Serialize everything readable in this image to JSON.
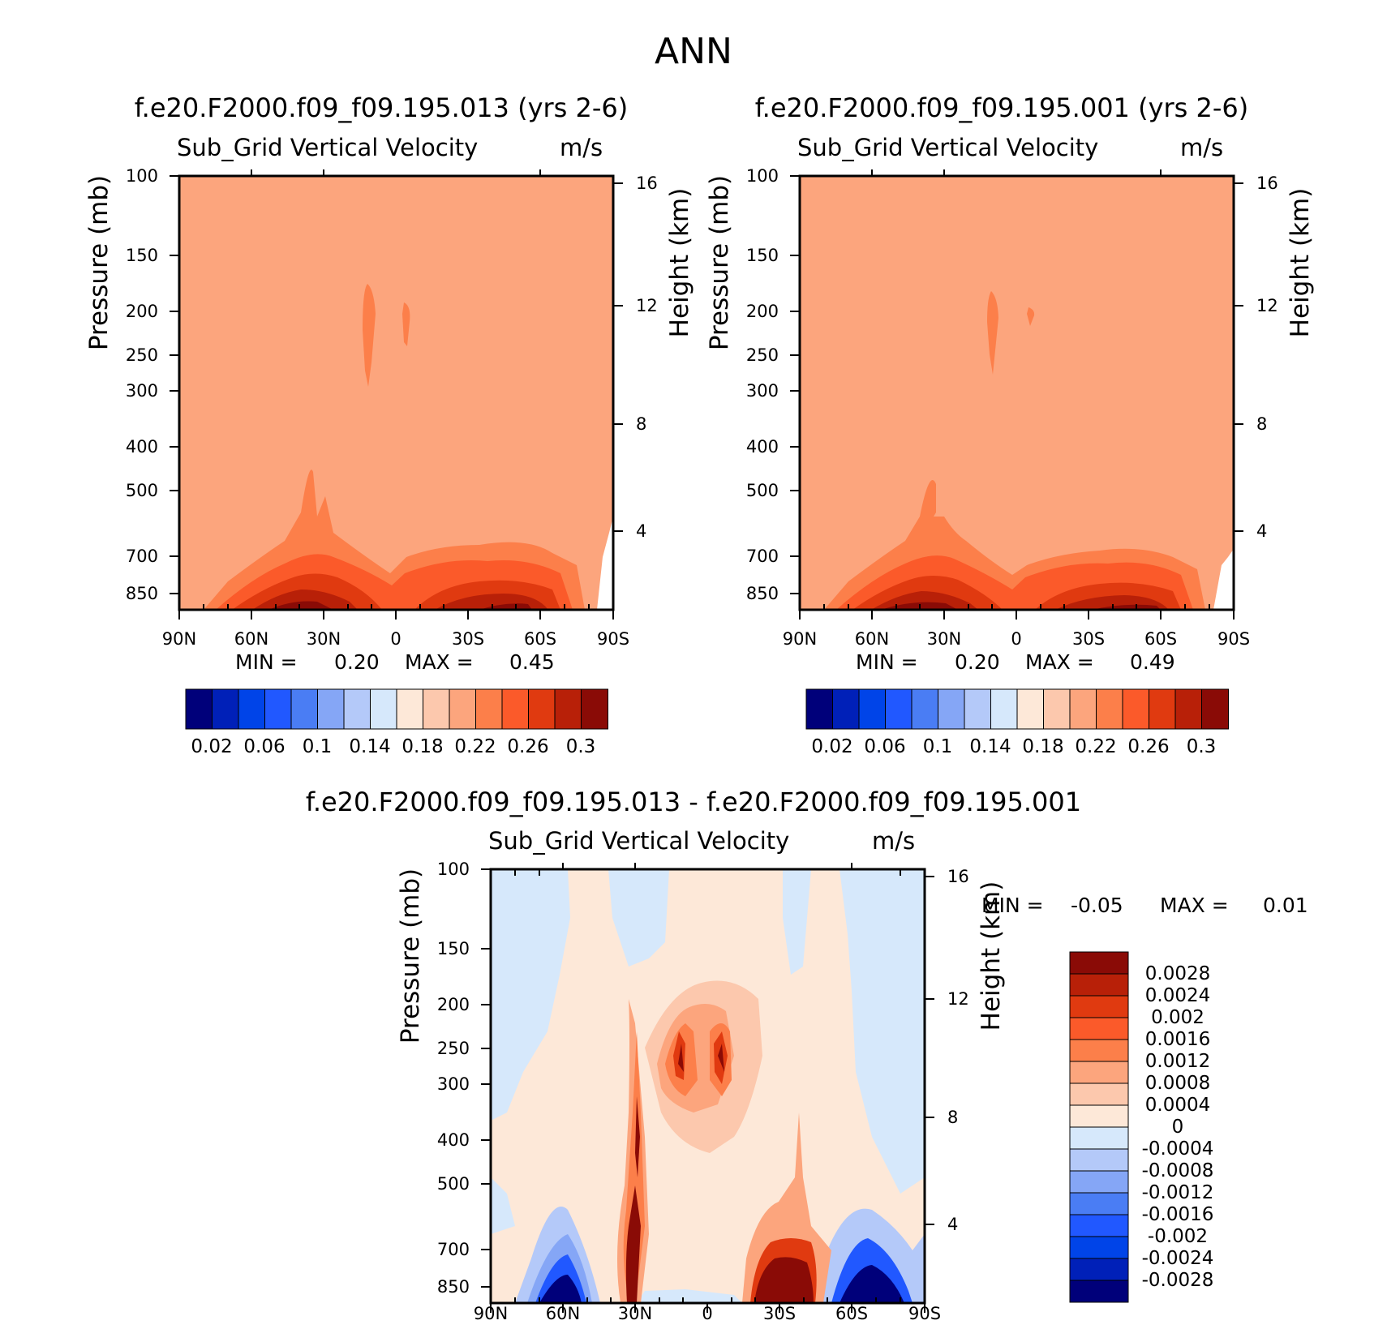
{
  "title": "ANN",
  "colors": {
    "background_top": "#fca57d",
    "diff_background": "#fde8d8",
    "outline": "#000000"
  },
  "panels": {
    "top_left": {
      "title": "f.e20.F2000.f09_f09.195.013 (yrs 2-6)",
      "variable": "Sub_Grid Vertical Velocity",
      "units": "m/s",
      "min_label": "MIN =",
      "min_value": "0.20",
      "max_label": "MAX =",
      "max_value": "0.45"
    },
    "top_right": {
      "title": "f.e20.F2000.f09_f09.195.001 (yrs 2-6)",
      "variable": "Sub_Grid Vertical Velocity",
      "units": "m/s",
      "min_label": "MIN =",
      "min_value": "0.20",
      "max_label": "MAX =",
      "max_value": "0.49"
    },
    "bottom": {
      "title": "f.e20.F2000.f09_f09.195.013 - f.e20.F2000.f09_f09.195.001",
      "variable": "Sub_Grid Vertical Velocity",
      "units": "m/s",
      "min_label": "MIN =",
      "min_value": "-0.05",
      "max_label": "MAX =",
      "max_value": "0.01"
    }
  },
  "axes": {
    "ylabel_left": "Pressure (mb)",
    "ylabel_right": "Height (km)",
    "pressure_ticks": [
      "100",
      "150",
      "200",
      "250",
      "300",
      "400",
      "500",
      "700",
      "850"
    ],
    "height_ticks": [
      "16",
      "12",
      "8",
      "4"
    ],
    "lat_ticks": [
      "90N",
      "60N",
      "30N",
      "0",
      "30S",
      "60S",
      "90S"
    ]
  },
  "chart_data": [
    {
      "type": "heatmap",
      "title": "f.e20.F2000.f09_f09.195.013 (yrs 2-6)",
      "subtitle": "Sub_Grid Vertical Velocity",
      "units": "m/s",
      "xlabel": "",
      "ylabel": "Pressure (mb)",
      "ylabel_right": "Height (km)",
      "x_ticks": [
        "90N",
        "60N",
        "30N",
        "0",
        "30S",
        "60S",
        "90S"
      ],
      "y_ticks": [
        100,
        150,
        200,
        250,
        300,
        400,
        500,
        700,
        850
      ],
      "y_scale": "log",
      "min": 0.2,
      "max": 0.45,
      "colorbar": {
        "levels": [
          0.02,
          0.04,
          0.06,
          0.08,
          0.1,
          0.12,
          0.14,
          0.16,
          0.18,
          0.2,
          0.22,
          0.24,
          0.26,
          0.28,
          0.3
        ],
        "tick_labels": [
          "0.02",
          "0.06",
          "0.1",
          "0.14",
          "0.18",
          "0.22",
          "0.26",
          "0.3"
        ]
      }
    },
    {
      "type": "heatmap",
      "title": "f.e20.F2000.f09_f09.195.001 (yrs 2-6)",
      "subtitle": "Sub_Grid Vertical Velocity",
      "units": "m/s",
      "xlabel": "",
      "ylabel": "Pressure (mb)",
      "ylabel_right": "Height (km)",
      "x_ticks": [
        "90N",
        "60N",
        "30N",
        "0",
        "30S",
        "60S",
        "90S"
      ],
      "y_ticks": [
        100,
        150,
        200,
        250,
        300,
        400,
        500,
        700,
        850
      ],
      "y_scale": "log",
      "min": 0.2,
      "max": 0.49,
      "colorbar": {
        "levels": [
          0.02,
          0.04,
          0.06,
          0.08,
          0.1,
          0.12,
          0.14,
          0.16,
          0.18,
          0.2,
          0.22,
          0.24,
          0.26,
          0.28,
          0.3
        ],
        "tick_labels": [
          "0.02",
          "0.06",
          "0.1",
          "0.14",
          "0.18",
          "0.22",
          "0.26",
          "0.3"
        ]
      }
    },
    {
      "type": "heatmap",
      "title": "f.e20.F2000.f09_f09.195.013 - f.e20.F2000.f09_f09.195.001",
      "subtitle": "Sub_Grid Vertical Velocity",
      "units": "m/s",
      "xlabel": "",
      "ylabel": "Pressure (mb)",
      "ylabel_right": "Height (km)",
      "x_ticks": [
        "90N",
        "60N",
        "30N",
        "0",
        "30S",
        "60S",
        "90S"
      ],
      "y_ticks": [
        100,
        150,
        200,
        250,
        300,
        400,
        500,
        700,
        850
      ],
      "y_scale": "log",
      "min": -0.05,
      "max": 0.01,
      "colorbar": {
        "levels": [
          -0.0028,
          -0.0024,
          -0.002,
          -0.0016,
          -0.0012,
          -0.0008,
          -0.0004,
          0,
          0.0004,
          0.0008,
          0.0012,
          0.0016,
          0.002,
          0.0024,
          0.0028
        ],
        "tick_labels": [
          "0.0028",
          "0.0024",
          "0.002",
          "0.0016",
          "0.0012",
          "0.0008",
          "0.0004",
          "0",
          "-0.0004",
          "-0.0008",
          "-0.0012",
          "-0.0016",
          "-0.002",
          "-0.0024",
          "-0.0028"
        ]
      }
    }
  ]
}
